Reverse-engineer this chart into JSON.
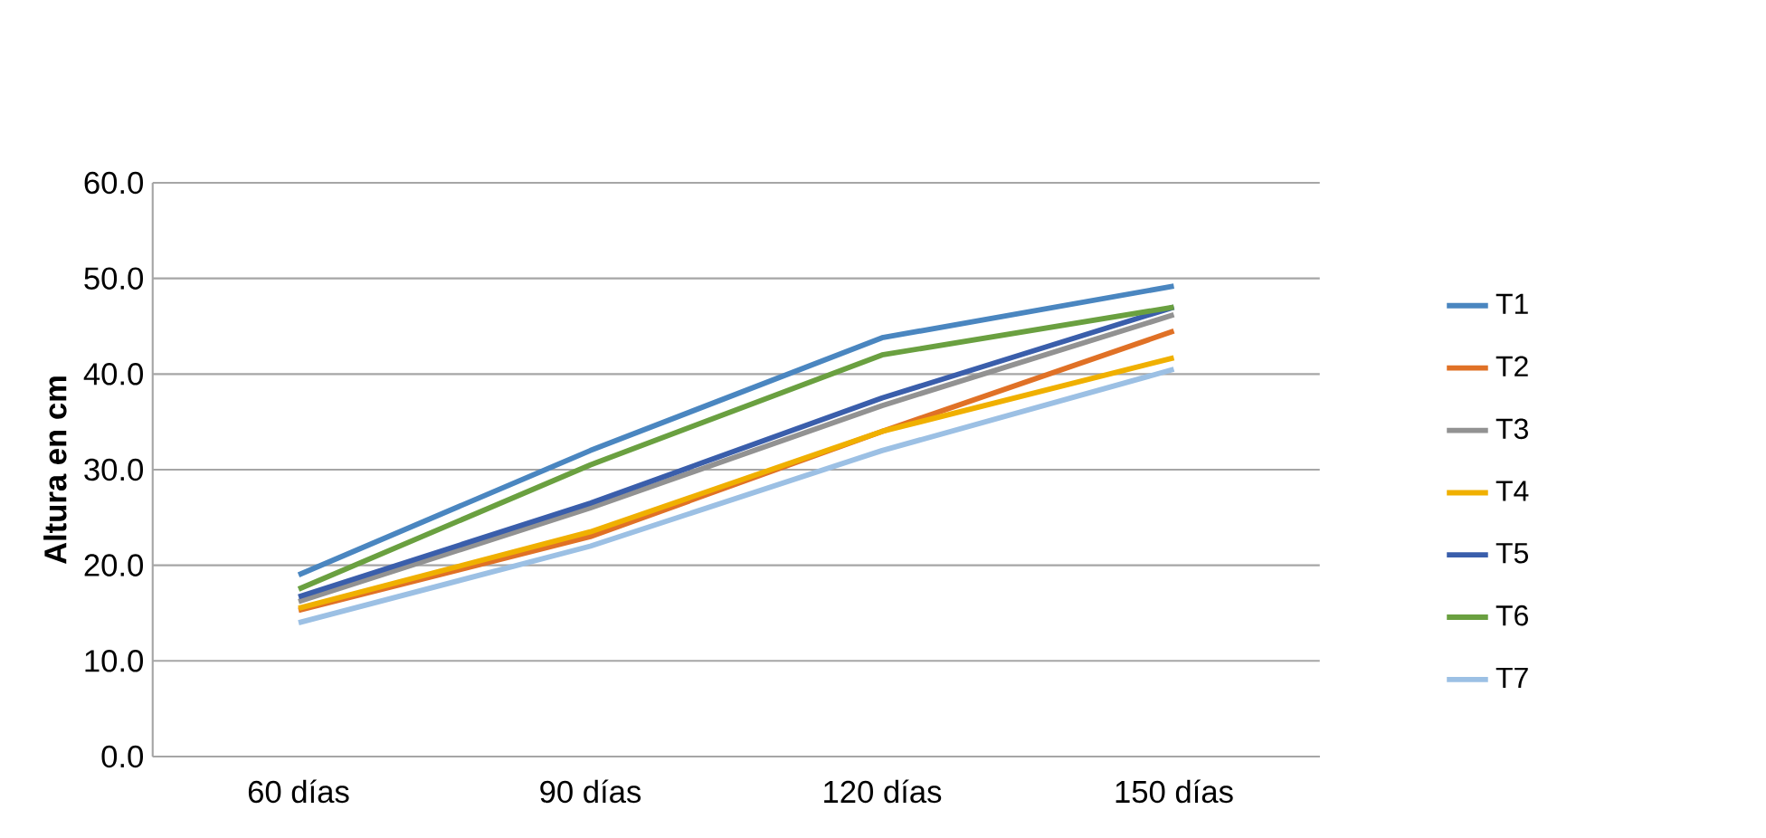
{
  "chart_data": {
    "type": "line",
    "ylabel": "Altura en cm",
    "categories": [
      "60 días",
      "90 días",
      "120 días",
      "150 días"
    ],
    "series": [
      {
        "name": "T1",
        "color": "#4a86c0",
        "values": [
          19,
          32,
          43.8,
          49.2
        ]
      },
      {
        "name": "T2",
        "color": "#e07126",
        "values": [
          15.3,
          23,
          34,
          44.5
        ]
      },
      {
        "name": "T3",
        "color": "#929292",
        "values": [
          16.2,
          26,
          36.7,
          46.2
        ]
      },
      {
        "name": "T4",
        "color": "#f0b000",
        "values": [
          15.5,
          23.5,
          34,
          41.7
        ]
      },
      {
        "name": "T5",
        "color": "#3a5eab",
        "values": [
          16.7,
          26.5,
          37.5,
          47
        ]
      },
      {
        "name": "T6",
        "color": "#6aa040",
        "values": [
          17.5,
          30.5,
          42,
          47
        ]
      },
      {
        "name": "T7",
        "color": "#9cc0e4",
        "values": [
          14,
          22,
          32,
          40.5
        ]
      }
    ],
    "ylim": [
      0,
      60
    ],
    "yticks": [
      {
        "value": 0,
        "label": "0.0"
      },
      {
        "value": 10,
        "label": "10.0"
      },
      {
        "value": 20,
        "label": "20.0"
      },
      {
        "value": 30,
        "label": "30.0"
      },
      {
        "value": 40,
        "label": "40.0"
      },
      {
        "value": 50,
        "label": "50.0"
      },
      {
        "value": 60,
        "label": "60.0"
      }
    ],
    "grid": "y",
    "legend": "right",
    "marker": "none",
    "line_style": "solid"
  }
}
